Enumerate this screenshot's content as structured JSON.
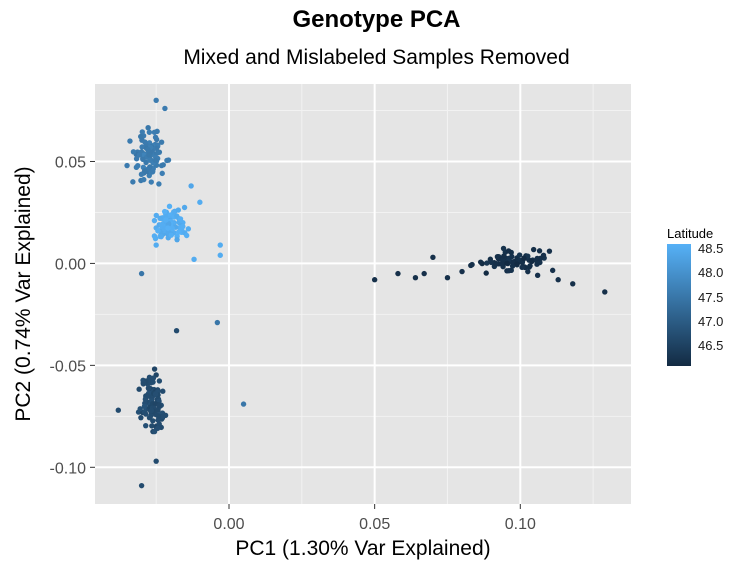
{
  "chart_data": {
    "type": "scatter",
    "title": "Genotype PCA",
    "subtitle": "Mixed and Mislabeled Samples Removed",
    "xlabel": "PC1 (1.30% Var Explained)",
    "ylabel": "PC2 (0.74% Var Explained)",
    "xlim": [
      -0.046,
      0.138
    ],
    "ylim": [
      -0.118,
      0.088
    ],
    "x_ticks": [
      0.0,
      0.05,
      0.1
    ],
    "x_tick_labels": [
      "0.00",
      "0.05",
      "0.10"
    ],
    "y_ticks": [
      -0.1,
      -0.05,
      0.0,
      0.05
    ],
    "y_tick_labels": [
      "-0.10",
      "-0.05",
      "0.00",
      "0.05"
    ],
    "grid": true,
    "background": "#e5e5e5",
    "color_scale": {
      "name": "Latitude",
      "low_color": "#132b43",
      "high_color": "#56b1f7",
      "range": [
        46.1,
        48.6
      ],
      "ticks": [
        48.5,
        48.0,
        47.5,
        47.0,
        46.5
      ],
      "position": "right"
    },
    "clusters": [
      {
        "center": [
          -0.027,
          0.052
        ],
        "spread": [
          0.0032,
          0.0085
        ],
        "count": 95,
        "latitude": 47.6
      },
      {
        "center": [
          -0.02,
          0.018
        ],
        "spread": [
          0.0042,
          0.0055
        ],
        "count": 90,
        "latitude": 48.5
      },
      {
        "center": [
          -0.026,
          -0.068
        ],
        "spread": [
          0.0028,
          0.0095
        ],
        "count": 110,
        "latitude": 46.7
      },
      {
        "center": [
          0.097,
          0.002
        ],
        "spread": [
          0.0085,
          0.0035
        ],
        "count": 75,
        "latitude": 46.2
      }
    ],
    "points": [
      {
        "x": 0.05,
        "y": -0.008,
        "lat": 46.2
      },
      {
        "x": 0.058,
        "y": -0.005,
        "lat": 46.2
      },
      {
        "x": 0.064,
        "y": -0.007,
        "lat": 46.2
      },
      {
        "x": 0.067,
        "y": -0.005,
        "lat": 46.2
      },
      {
        "x": 0.07,
        "y": 0.003,
        "lat": 46.2
      },
      {
        "x": 0.075,
        "y": -0.007,
        "lat": 46.2
      },
      {
        "x": 0.08,
        "y": -0.004,
        "lat": 46.2
      },
      {
        "x": 0.083,
        "y": -0.001,
        "lat": 46.2
      },
      {
        "x": 0.113,
        "y": -0.008,
        "lat": 46.2
      },
      {
        "x": 0.118,
        "y": -0.01,
        "lat": 46.2
      },
      {
        "x": 0.129,
        "y": -0.014,
        "lat": 46.2
      },
      {
        "x": 0.11,
        "y": 0.006,
        "lat": 46.2
      },
      {
        "x": 0.005,
        "y": -0.069,
        "lat": 47.5
      },
      {
        "x": -0.004,
        "y": -0.029,
        "lat": 47.5
      },
      {
        "x": -0.003,
        "y": 0.009,
        "lat": 48.5
      },
      {
        "x": -0.003,
        "y": 0.004,
        "lat": 48.5
      },
      {
        "x": -0.03,
        "y": -0.005,
        "lat": 47.5
      },
      {
        "x": -0.038,
        "y": -0.072,
        "lat": 46.7
      },
      {
        "x": -0.03,
        "y": -0.109,
        "lat": 46.7
      },
      {
        "x": -0.025,
        "y": -0.097,
        "lat": 46.7
      },
      {
        "x": -0.018,
        "y": -0.033,
        "lat": 46.7
      },
      {
        "x": -0.025,
        "y": 0.08,
        "lat": 47.6
      },
      {
        "x": -0.022,
        "y": 0.076,
        "lat": 47.6
      },
      {
        "x": -0.034,
        "y": 0.06,
        "lat": 47.6
      },
      {
        "x": -0.035,
        "y": 0.048,
        "lat": 47.6
      },
      {
        "x": -0.033,
        "y": 0.04,
        "lat": 47.6
      },
      {
        "x": -0.013,
        "y": 0.038,
        "lat": 48.4
      },
      {
        "x": -0.025,
        "y": 0.009,
        "lat": 48.5
      },
      {
        "x": -0.01,
        "y": 0.03,
        "lat": 48.5
      },
      {
        "x": -0.012,
        "y": 0.002,
        "lat": 48.5
      }
    ]
  }
}
